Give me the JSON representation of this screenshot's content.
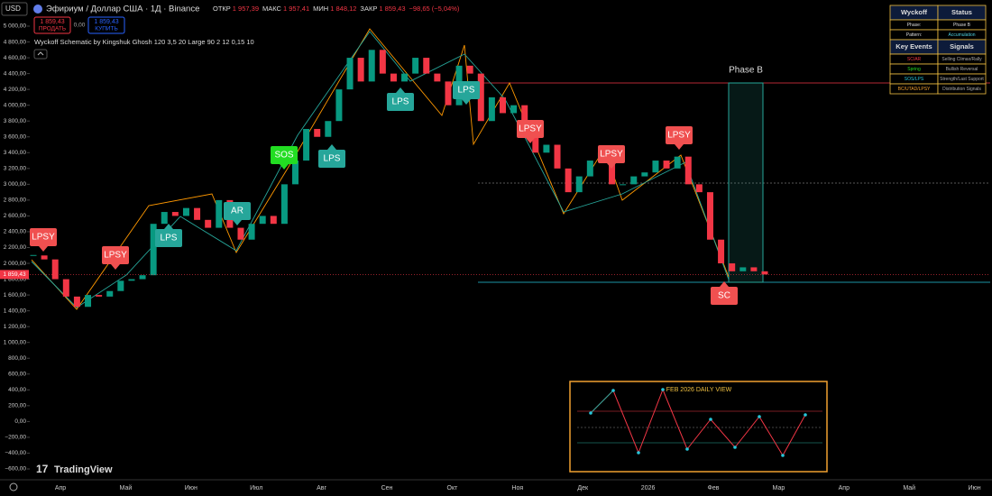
{
  "header": {
    "currency": "USD",
    "symbol": "Эфириум / Доллар США · 1Д · Binance",
    "ohlc": [
      {
        "label": "ОТКР",
        "value": "1 957,39"
      },
      {
        "label": "МАКС",
        "value": "1 957,41"
      },
      {
        "label": "МИН",
        "value": "1 848,12"
      },
      {
        "label": "ЗАКР",
        "value": "1 859,43"
      }
    ],
    "change": "−98,65 (−5,04%)",
    "sell_price": "1 859,43",
    "sell_label": "ПРОДАТЬ",
    "spread": "0,00",
    "buy_price": "1 859,43",
    "buy_label": "КУПИТЬ",
    "indicator": "Wyckoff Schematic by Kingshuk Ghosh 120 3,5 20 Large 90 2 12 0,15 10"
  },
  "price": {
    "type": "candlestick",
    "last": {
      "value": 1859.43,
      "label": "1 859,43"
    },
    "closes": [
      2100,
      2050,
      1800,
      1580,
      1450,
      1600,
      1580,
      1650,
      1780,
      1800,
      1850,
      2500,
      2650,
      2600,
      2700,
      2550,
      2450,
      2800,
      2450,
      2300,
      2500,
      2600,
      2500,
      3000,
      3300,
      3700,
      3600,
      3800,
      4200,
      4600,
      4300,
      4700,
      4400,
      4300,
      4400,
      4600,
      4400,
      4300,
      4000,
      4500,
      4400,
      3800,
      4100,
      3900,
      4000,
      3800,
      3400,
      3500,
      3200,
      2900,
      3100,
      3300,
      3400,
      3000,
      3000,
      3100,
      3150,
      3300,
      3200,
      3350,
      3000,
      2900,
      2300,
      2000,
      1900,
      1950,
      1900,
      1859.43
    ],
    "up_color": "#089981",
    "down_color": "#f23645",
    "ylim": [
      -600,
      5000
    ],
    "yticks": [
      {
        "value": 5000,
        "label": "5 000,00"
      },
      {
        "value": 4800,
        "label": "4 800,00"
      },
      {
        "value": 4600,
        "label": "4 600,00"
      },
      {
        "value": 4400,
        "label": "4 400,00"
      },
      {
        "value": 4200,
        "label": "4 200,00"
      },
      {
        "value": 4000,
        "label": "4 000,00"
      },
      {
        "value": 3800,
        "label": "3 800,00"
      },
      {
        "value": 3600,
        "label": "3 600,00"
      },
      {
        "value": 3400,
        "label": "3 400,00"
      },
      {
        "value": 3200,
        "label": "3 200,00"
      },
      {
        "value": 3000,
        "label": "3 000,00"
      },
      {
        "value": 2800,
        "label": "2 800,00"
      },
      {
        "value": 2600,
        "label": "2 600,00"
      },
      {
        "value": 2400,
        "label": "2 400,00"
      },
      {
        "value": 2200,
        "label": "2 200,00"
      },
      {
        "value": 2000,
        "label": "2 000,00"
      },
      {
        "value": 1800,
        "label": "1 800,00"
      },
      {
        "value": 1600,
        "label": "1 600,00"
      },
      {
        "value": 1400,
        "label": "1 400,00"
      },
      {
        "value": 1200,
        "label": "1 200,00"
      },
      {
        "value": 1000,
        "label": "1 000,00"
      },
      {
        "value": 800,
        "label": "800,00"
      },
      {
        "value": 600,
        "label": "600,00"
      },
      {
        "value": 400,
        "label": "400,00"
      },
      {
        "value": 200,
        "label": "200,00"
      },
      {
        "value": 0,
        "label": "0,00"
      },
      {
        "value": -200,
        "label": "−200,00"
      },
      {
        "value": -400,
        "label": "−400,00"
      },
      {
        "value": -600,
        "label": "−600,00"
      }
    ],
    "months": [
      "Апр",
      "Май",
      "Июн",
      "Июл",
      "Авг",
      "Сен",
      "Окт",
      "Ноя",
      "Дек",
      "2026",
      "Фев",
      "Мар",
      "Апр",
      "Май",
      "Июн"
    ]
  },
  "events": [
    "LPSY",
    "LPSY",
    "LPS",
    "AR",
    "SOS",
    "LPS",
    "LPS",
    "LPS",
    "LPSY",
    "LPSY",
    "LPSY",
    "SC"
  ],
  "phase_label": "Phase B",
  "table": {
    "rows": [
      [
        "Wyckoff",
        "Status"
      ],
      [
        "Phase:",
        "Phase B"
      ],
      [
        "Pattern:",
        "Accumulation"
      ],
      [
        "Key Events",
        "Signals"
      ],
      [
        "SC/AR",
        "Selling Climax/Rally"
      ],
      [
        "Spring",
        "Bullish Reversal"
      ],
      [
        "SOS/LPS",
        "Strength/Last Support"
      ],
      [
        "BC/UTAD/LPSY",
        "Distribution Signals"
      ]
    ]
  },
  "inset": {
    "title": "FEB 2026 DAILY VIEW"
  },
  "logo": "TradingView"
}
